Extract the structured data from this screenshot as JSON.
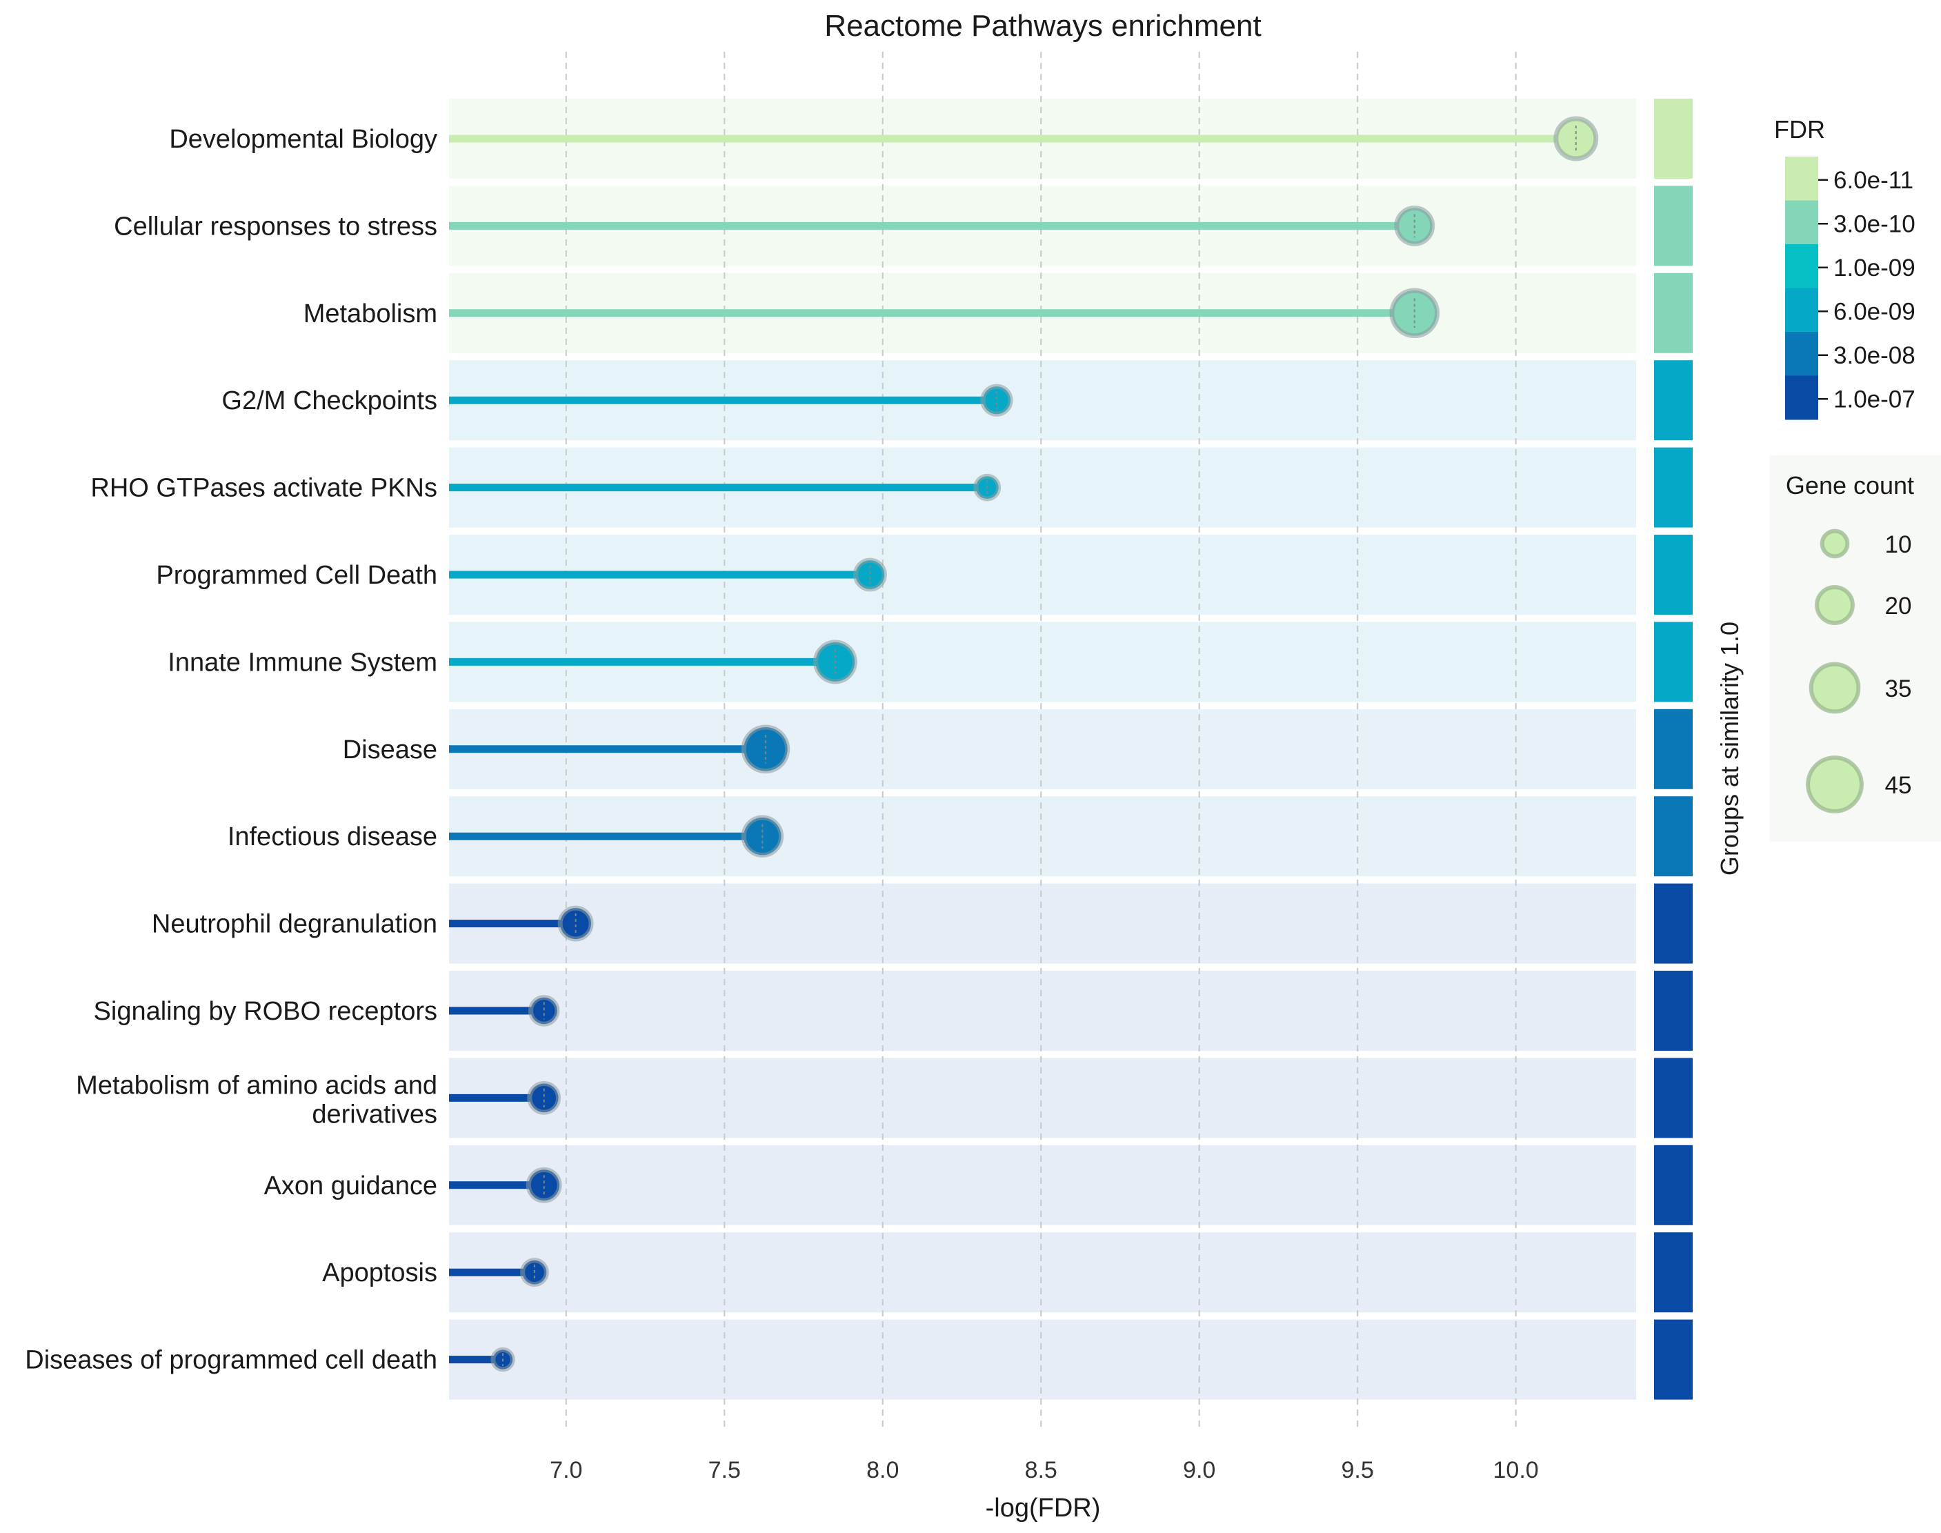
{
  "chart_data": {
    "type": "lollipop",
    "title": "Reactome Pathways enrichment",
    "xlabel": "-log(FDR)",
    "xlim": [
      6.63,
      10.38
    ],
    "xticks": [
      "7.0",
      "7.5",
      "8.0",
      "8.5",
      "9.0",
      "9.5",
      "10.0"
    ],
    "xtick_values": [
      7.0,
      7.5,
      8.0,
      8.5,
      9.0,
      9.5,
      10.0
    ],
    "grid": "vertical dashed",
    "categories": [
      [
        "Developmental Biology"
      ],
      [
        "Cellular responses to stress"
      ],
      [
        "Metabolism"
      ],
      [
        "G2/M Checkpoints"
      ],
      [
        "RHO GTPases activate PKNs"
      ],
      [
        "Programmed Cell Death"
      ],
      [
        "Innate Immune System"
      ],
      [
        "Disease"
      ],
      [
        "Infectious disease"
      ],
      [
        "Neutrophil degranulation"
      ],
      [
        "Signaling by ROBO receptors"
      ],
      [
        "Metabolism of amino acids and",
        "derivatives"
      ],
      [
        "Axon guidance"
      ],
      [
        "Apoptosis"
      ],
      [
        "Diseases of programmed cell death"
      ]
    ],
    "values": [
      10.19,
      9.68,
      9.68,
      8.36,
      8.33,
      7.96,
      7.85,
      7.63,
      7.62,
      7.03,
      6.93,
      6.93,
      6.93,
      6.9,
      6.8
    ],
    "gene_counts": [
      25,
      20,
      32,
      12,
      8,
      13,
      24,
      30,
      22,
      15,
      11,
      13,
      15,
      9,
      6
    ],
    "similarity_groups": [
      1,
      2,
      2,
      3,
      3,
      3,
      3,
      4,
      4,
      5,
      5,
      5,
      5,
      5,
      5
    ],
    "group_colors": {
      "1": "#c9edb0",
      "2": "#84d6b8",
      "3": "#05a8c6",
      "4": "#0a77b7",
      "5": "#084aa5"
    },
    "group_band_colors": {
      "1": "#f3faf1",
      "2": "#f3faf1",
      "3": "#e6f3f8",
      "4": "#e6f1f8",
      "5": "#e7edf6"
    },
    "fdr_legend": {
      "title": "FDR",
      "labels": [
        "6.0e-11",
        "3.0e-10",
        "1.0e-09",
        "6.0e-09",
        "3.0e-08",
        "1.0e-07"
      ],
      "colors": [
        "#c9edb0",
        "#84d6b8",
        "#06c0c6",
        "#05a8c6",
        "#0a77b7",
        "#084aa5"
      ]
    },
    "size_legend": {
      "title": "Gene count",
      "labels": [
        "10",
        "20",
        "35",
        "45"
      ],
      "values": [
        10,
        20,
        35,
        45
      ]
    },
    "side_label": "Groups at similarity 1.0"
  }
}
